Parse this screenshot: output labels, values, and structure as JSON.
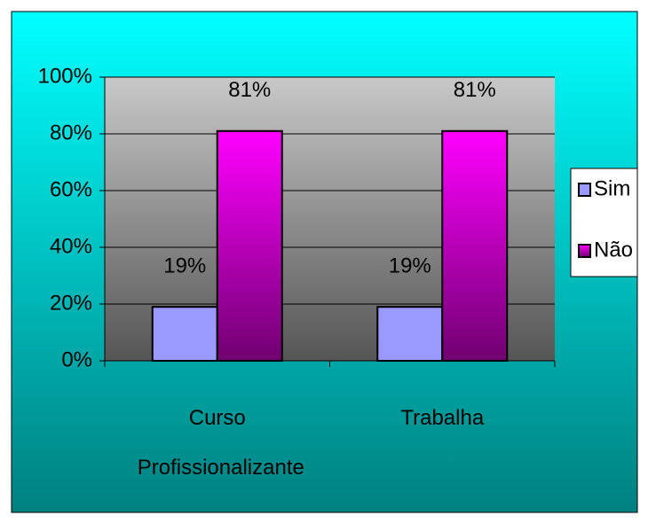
{
  "chart_data": {
    "type": "bar",
    "categories": [
      "Curso Profissionalizante",
      "Trabalha"
    ],
    "series": [
      {
        "name": "Sim",
        "color": "#9999ff",
        "values": [
          19,
          19
        ],
        "value_labels": [
          "19%",
          "19%"
        ]
      },
      {
        "name": "Não",
        "color": "#cc00cc",
        "values": [
          81,
          81
        ],
        "value_labels": [
          "81%",
          "81%"
        ]
      }
    ],
    "ylim": [
      0,
      100
    ],
    "yticks": [
      {
        "value": 0,
        "label": "0%"
      },
      {
        "value": 20,
        "label": "20%"
      },
      {
        "value": 40,
        "label": "40%"
      },
      {
        "value": 60,
        "label": "60%"
      },
      {
        "value": 80,
        "label": "80%"
      },
      {
        "value": 100,
        "label": "100%"
      }
    ],
    "grid": true,
    "legend": "right"
  }
}
